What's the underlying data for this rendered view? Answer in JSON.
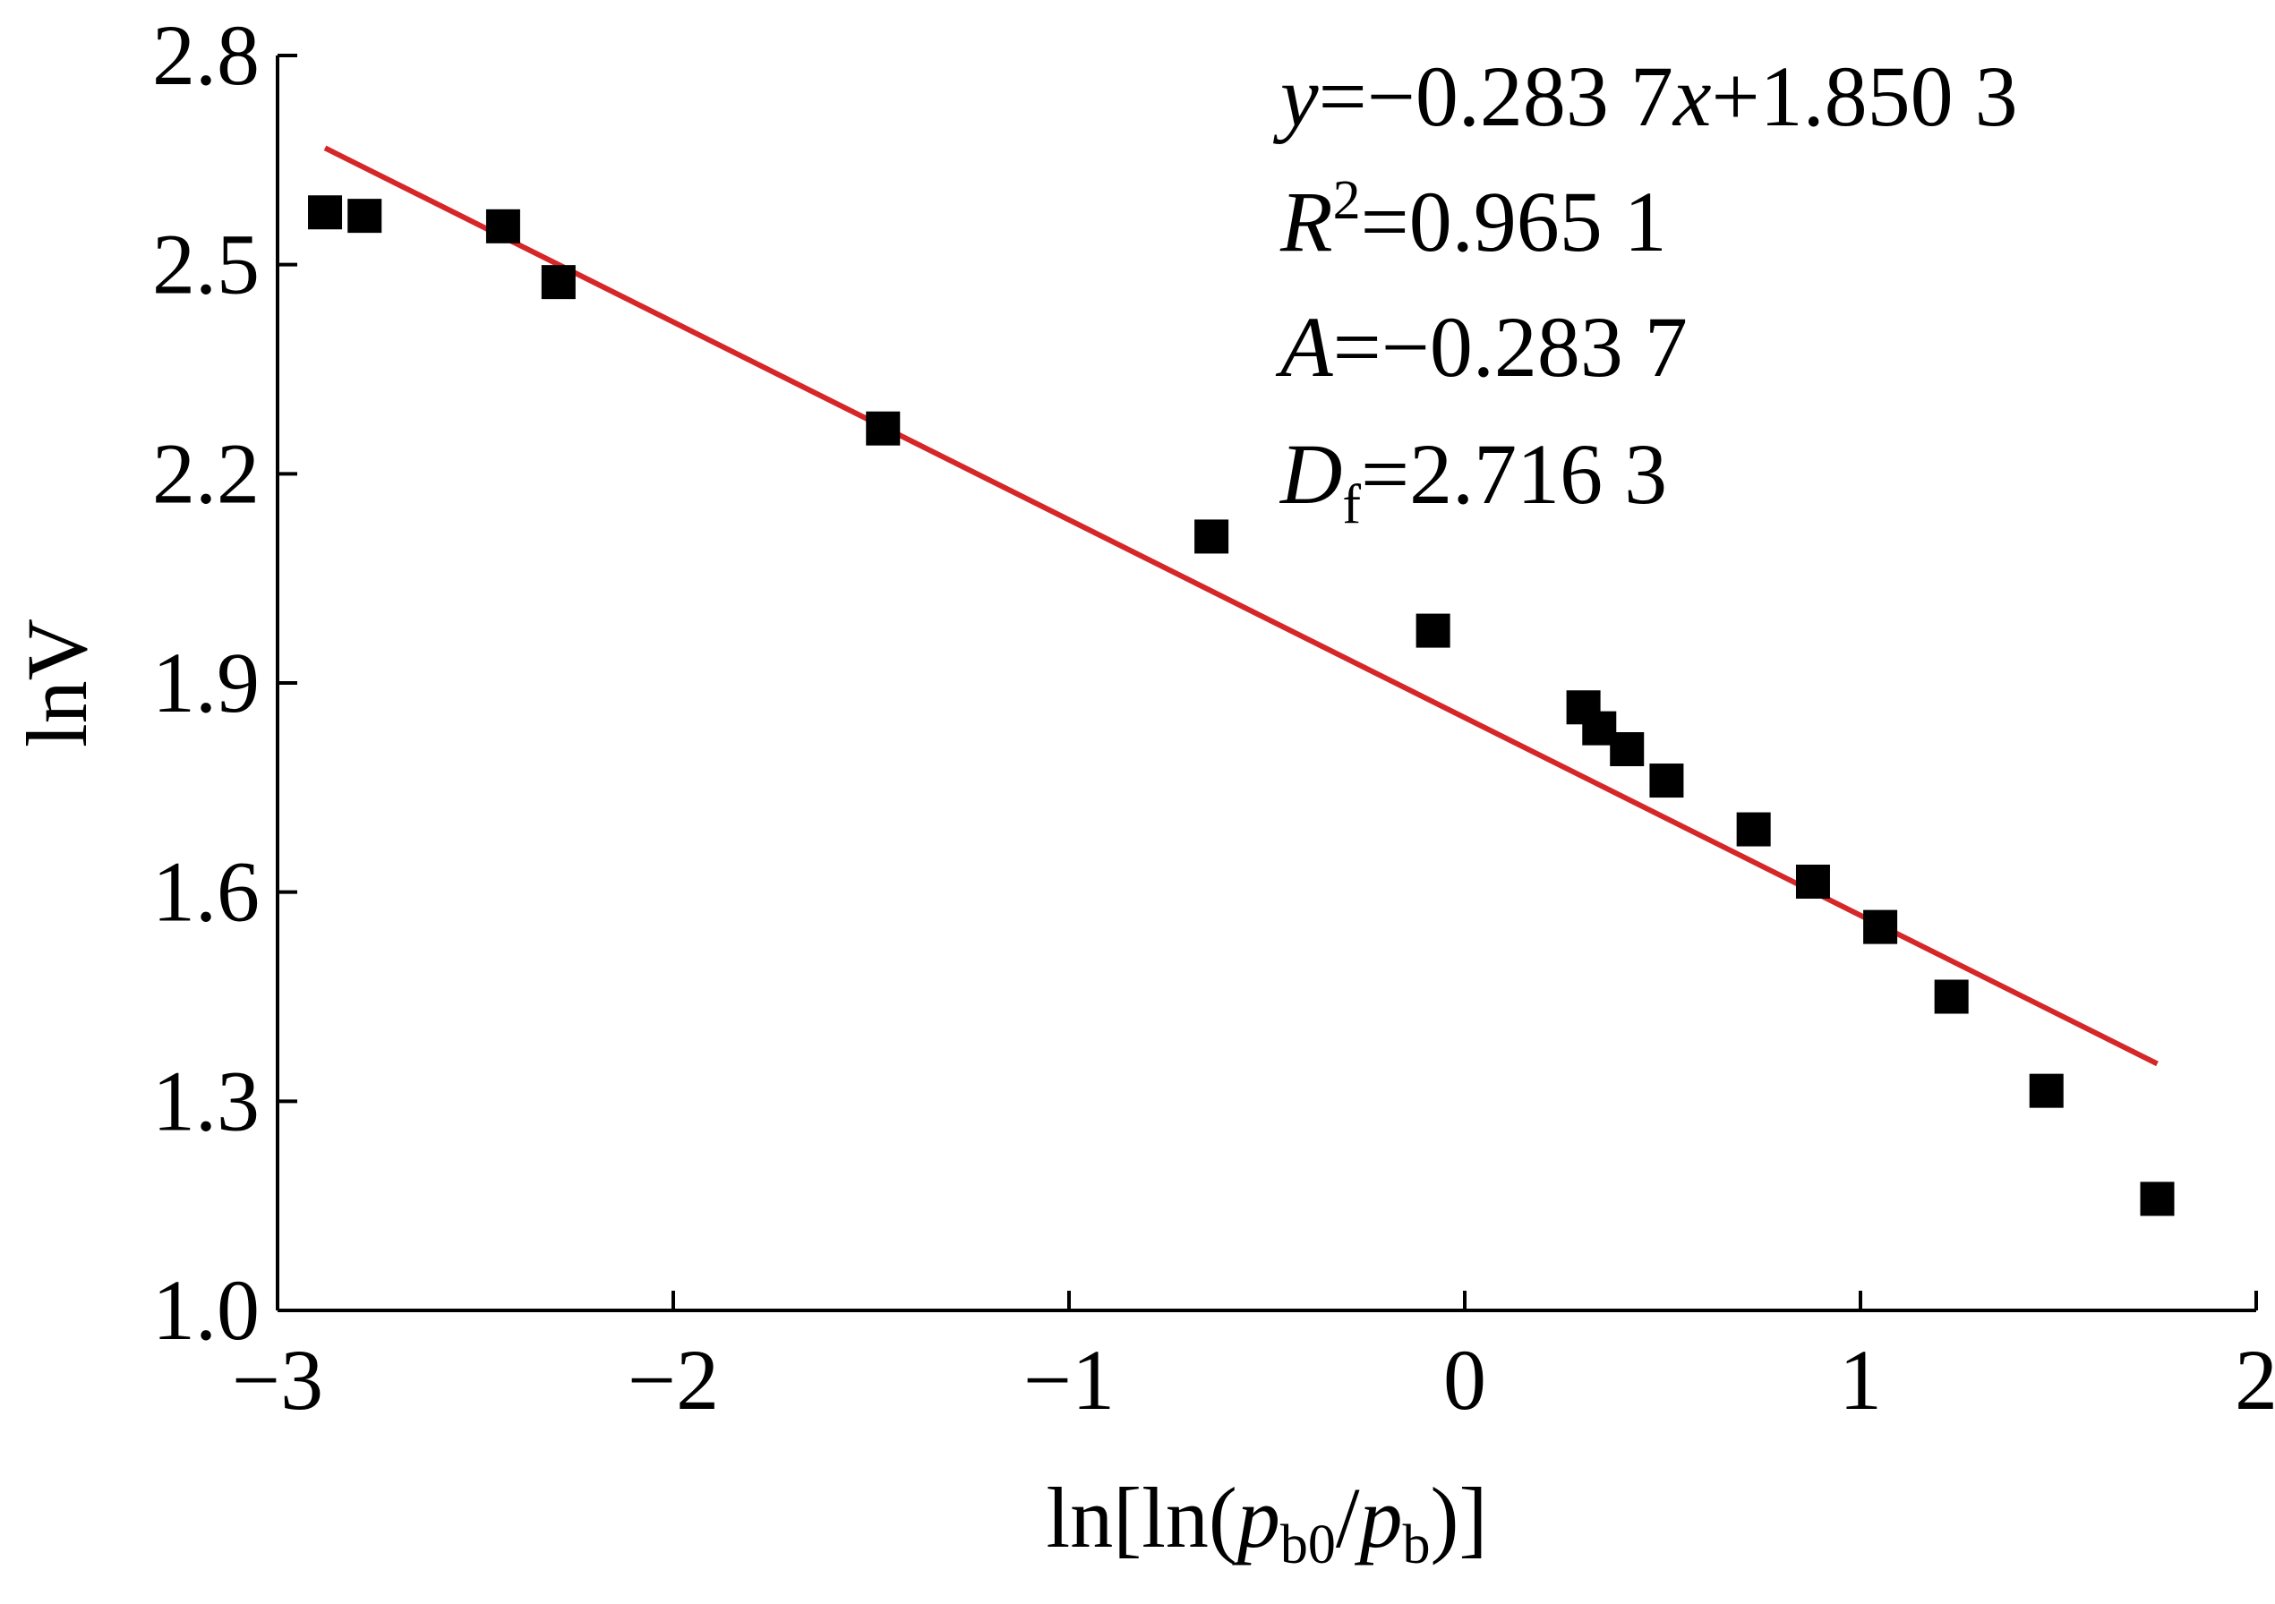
{
  "chart_data": {
    "type": "scatter",
    "xlabel": {
      "prefix": "ln[ln(",
      "p1": "p",
      "p1_sub": "b0",
      "slash": "/",
      "p2": "p",
      "p2_sub": "b",
      "suffix": ")]"
    },
    "ylabel": "lnV",
    "xlim": [
      -3,
      2
    ],
    "ylim": [
      1.0,
      2.8
    ],
    "x_ticks": [
      -3,
      -2,
      -1,
      0,
      1,
      2
    ],
    "x_tick_labels": [
      "−3",
      "−2",
      "−1",
      "0",
      "1",
      "2"
    ],
    "y_ticks": [
      1.0,
      1.3,
      1.6,
      1.9,
      2.2,
      2.5,
      2.8
    ],
    "y_tick_labels": [
      "1.0",
      "1.3",
      "1.6",
      "1.9",
      "2.2",
      "2.5",
      "2.8"
    ],
    "grid": false,
    "series": [
      {
        "marker": "square",
        "color": "#000000",
        "x": [
          -2.88,
          -2.78,
          -2.43,
          -2.29,
          -1.47,
          -0.64,
          -0.08,
          0.3,
          0.34,
          0.41,
          0.51,
          0.73,
          0.88,
          1.05,
          1.23,
          1.47,
          1.75
        ],
        "y": [
          2.575,
          2.57,
          2.555,
          2.475,
          2.265,
          2.11,
          1.975,
          1.865,
          1.835,
          1.805,
          1.76,
          1.69,
          1.615,
          1.55,
          1.45,
          1.315,
          1.16
        ]
      }
    ],
    "fit_line": {
      "color": "#d62728",
      "slope": -0.2837,
      "intercept": 1.8503,
      "x_range": [
        -2.88,
        1.75
      ]
    },
    "annotations": {
      "eq_y": "y",
      "eq_rest1": "=−0.283 7",
      "eq_x": "x",
      "eq_rest2": "+1.850 3",
      "r_label": "R",
      "r_sup": "2",
      "r_value": "=0.965 1",
      "a_label": "A",
      "a_value": "=−0.283 7",
      "d_label": "D",
      "d_sub": "f",
      "d_value": "=2.716 3"
    }
  }
}
